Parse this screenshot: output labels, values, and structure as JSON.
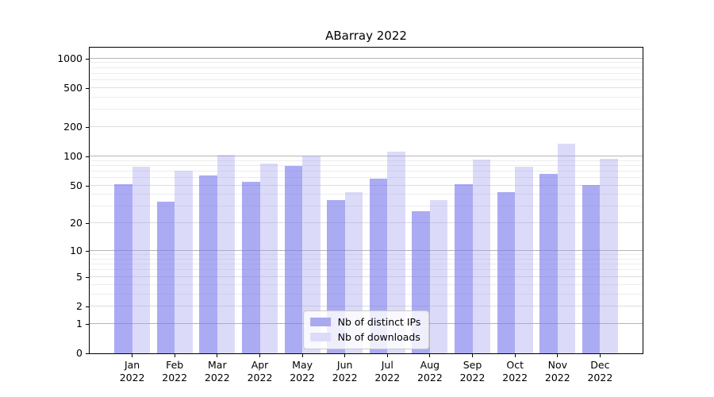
{
  "chart_data": {
    "type": "bar",
    "title": "ABarray 2022",
    "categories": [
      "Jan",
      "Feb",
      "Mar",
      "Apr",
      "May",
      "Jun",
      "Jul",
      "Aug",
      "Sep",
      "Oct",
      "Nov",
      "Dec"
    ],
    "x_year_label": "2022",
    "series": [
      {
        "name": "Nb of distinct IPs",
        "legend_color": "#a9a9ee",
        "bar_fill": "rgba(120,120,235,0.62)",
        "values": [
          52,
          34,
          64,
          55,
          80,
          35,
          59,
          27,
          52,
          43,
          66,
          51
        ]
      },
      {
        "name": "Nb of downloads",
        "legend_color": "#dcdcf9",
        "bar_fill": "rgba(160,160,240,0.38)",
        "values": [
          78,
          71,
          103,
          85,
          102,
          43,
          112,
          35,
          93,
          78,
          136,
          94
        ]
      }
    ],
    "y_scale": "log10(1+v)",
    "y_ticks": [
      1000,
      500,
      200,
      100,
      50,
      20,
      10,
      5,
      2,
      1,
      0
    ],
    "y_minor_gridlines": [
      3,
      4,
      6,
      7,
      8,
      9,
      30,
      40,
      60,
      70,
      80,
      90,
      300,
      400,
      600,
      700,
      800,
      900
    ],
    "y_major_gridlines": [
      1,
      10,
      100,
      1000
    ],
    "ylim": [
      0,
      1275
    ],
    "grid": true,
    "legend_position": "lower center"
  },
  "colors": {
    "axis": "#000000",
    "grid_major": "#b5b5b5",
    "grid_minor": "#ececec",
    "background": "#ffffff"
  }
}
